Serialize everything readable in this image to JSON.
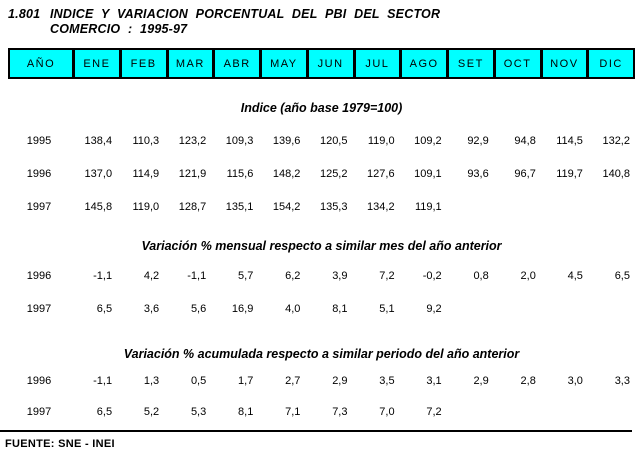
{
  "title": {
    "number": "1.801",
    "line1": "INDICE Y VARIACION PORCENTUAL DEL PBI DEL SECTOR",
    "line2": "COMERCIO : 1995-97"
  },
  "colors": {
    "header_bg": "#00FFFF",
    "border": "#000000",
    "text": "#000000"
  },
  "table": {
    "columns": [
      "AÑO",
      "ENE",
      "FEB",
      "MAR",
      "ABR",
      "MAY",
      "JUN",
      "JUL",
      "AGO",
      "SET",
      "OCT",
      "NOV",
      "DIC"
    ],
    "sections": [
      {
        "heading": "Indice (año base 1979=100)",
        "rows": [
          {
            "year": "1995",
            "values": [
              "138,4",
              "110,3",
              "123,2",
              "109,3",
              "139,6",
              "120,5",
              "119,0",
              "109,2",
              "92,9",
              "94,8",
              "114,5",
              "132,2"
            ]
          },
          {
            "year": "1996",
            "values": [
              "137,0",
              "114,9",
              "121,9",
              "115,6",
              "148,2",
              "125,2",
              "127,6",
              "109,1",
              "93,6",
              "96,7",
              "119,7",
              "140,8"
            ]
          },
          {
            "year": "1997",
            "values": [
              "145,8",
              "119,0",
              "128,7",
              "135,1",
              "154,2",
              "135,3",
              "134,2",
              "119,1",
              "",
              "",
              "",
              ""
            ]
          }
        ]
      },
      {
        "heading": "Variación % mensual respecto a similar mes del año anterior",
        "rows": [
          {
            "year": "1996",
            "values": [
              "-1,1",
              "4,2",
              "-1,1",
              "5,7",
              "6,2",
              "3,9",
              "7,2",
              "-0,2",
              "0,8",
              "2,0",
              "4,5",
              "6,5"
            ]
          },
          {
            "year": "1997",
            "values": [
              "6,5",
              "3,6",
              "5,6",
              "16,9",
              "4,0",
              "8,1",
              "5,1",
              "9,2",
              "",
              "",
              "",
              ""
            ]
          }
        ]
      },
      {
        "heading": "Variación % acumulada respecto a similar periodo del año anterior",
        "rows": [
          {
            "year": "1996",
            "values": [
              "-1,1",
              "1,3",
              "0,5",
              "1,7",
              "2,7",
              "2,9",
              "3,5",
              "3,1",
              "2,9",
              "2,8",
              "3,0",
              "3,3"
            ]
          },
          {
            "year": "1997",
            "values": [
              "6,5",
              "5,2",
              "5,3",
              "8,1",
              "7,1",
              "7,3",
              "7,0",
              "7,2",
              "",
              "",
              "",
              ""
            ]
          }
        ]
      }
    ]
  },
  "footer": {
    "source": "FUENTE: SNE - INEI"
  }
}
